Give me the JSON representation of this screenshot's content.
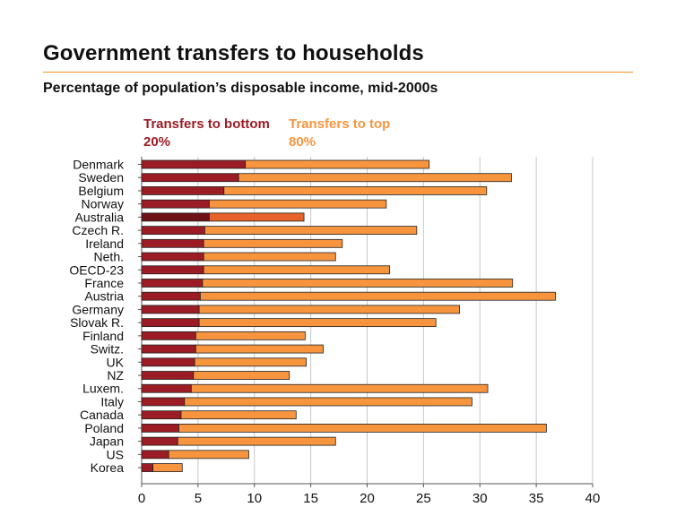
{
  "title": "Government transfers to households",
  "subtitle": "Percentage of population’s disposable income, mid-2000s",
  "colors": {
    "bottom": "#9b1c25",
    "top": "#f7953f",
    "australia_bottom": "#6e1217",
    "australia_top": "#e8632a",
    "rule": "#f7941e"
  },
  "chart_data": {
    "type": "bar",
    "orientation": "horizontal",
    "stacked": true,
    "categories": [
      "Denmark",
      "Sweden",
      "Belgium",
      "Norway",
      "Australia",
      "Czech R.",
      "Ireland",
      "Neth.",
      "OECD-23",
      "France",
      "Austria",
      "Germany",
      "Slovak R.",
      "Finland",
      "Switz.",
      "UK",
      "NZ",
      "Luxem.",
      "Italy",
      "Canada",
      "Poland",
      "Japan",
      "US",
      "Korea"
    ],
    "series": [
      {
        "name": "Transfers to bottom 20%",
        "values": [
          9.2,
          8.6,
          7.3,
          6.0,
          6.0,
          5.6,
          5.5,
          5.5,
          5.5,
          5.4,
          5.2,
          5.1,
          5.1,
          4.8,
          4.8,
          4.7,
          4.6,
          4.4,
          3.8,
          3.5,
          3.3,
          3.2,
          2.4,
          1.0
        ]
      },
      {
        "name": "Transfers to top 80%",
        "values": [
          16.3,
          24.2,
          23.3,
          15.7,
          8.4,
          18.8,
          12.3,
          11.7,
          16.5,
          27.5,
          31.5,
          23.1,
          21.0,
          9.7,
          11.3,
          9.9,
          8.5,
          26.3,
          25.5,
          10.2,
          32.6,
          14.0,
          7.1,
          2.6
        ]
      }
    ],
    "legend": {
      "bottom_label": "Transfers to bottom 20%",
      "top_label": "Transfers to top 80%",
      "placement": "top"
    },
    "xlim": [
      0,
      40
    ],
    "xticks": [
      "0",
      "5",
      "10",
      "15",
      "20",
      "25",
      "30",
      "35",
      "40"
    ],
    "grid": true,
    "xlabel": "",
    "ylabel": ""
  }
}
